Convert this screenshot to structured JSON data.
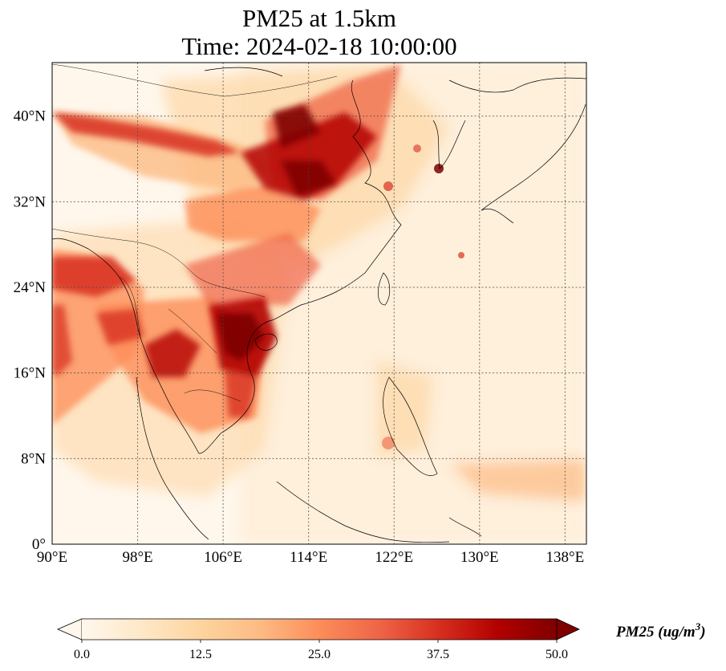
{
  "title": {
    "line1": "PM25 at 1.5km",
    "line2": "Time: 2024-02-18 10:00:00"
  },
  "map": {
    "lon_range": [
      90,
      140
    ],
    "lat_range": [
      0,
      45
    ],
    "x_ticks": [
      {
        "value": 90,
        "label": "90°E"
      },
      {
        "value": 98,
        "label": "98°E"
      },
      {
        "value": 106,
        "label": "106°E"
      },
      {
        "value": 114,
        "label": "114°E"
      },
      {
        "value": 122,
        "label": "122°E"
      },
      {
        "value": 130,
        "label": "130°E"
      },
      {
        "value": 138,
        "label": "138°E"
      }
    ],
    "y_ticks": [
      {
        "value": 0,
        "label": "0°"
      },
      {
        "value": 8,
        "label": "8°N"
      },
      {
        "value": 16,
        "label": "16°N"
      },
      {
        "value": 24,
        "label": "24°N"
      },
      {
        "value": 32,
        "label": "32°N"
      },
      {
        "value": 40,
        "label": "40°N"
      }
    ],
    "gridlines": true
  },
  "colorbar": {
    "title": "PM25 (ug/m",
    "title_sup": "3",
    "title_end": ")",
    "min": 0,
    "max": 50,
    "ticks": [
      {
        "value": 0,
        "label": "0.0"
      },
      {
        "value": 12.5,
        "label": "12.5"
      },
      {
        "value": 25,
        "label": "25.0"
      },
      {
        "value": 37.5,
        "label": "37.5"
      },
      {
        "value": 50,
        "label": "50.0"
      }
    ],
    "colormap": "OrRd",
    "colors": [
      "#fff7ec",
      "#fee8c8",
      "#fdd49e",
      "#fdbb84",
      "#fc8d59",
      "#ef6548",
      "#d7301f",
      "#b30000",
      "#7f0000"
    ],
    "extend": "both"
  }
}
